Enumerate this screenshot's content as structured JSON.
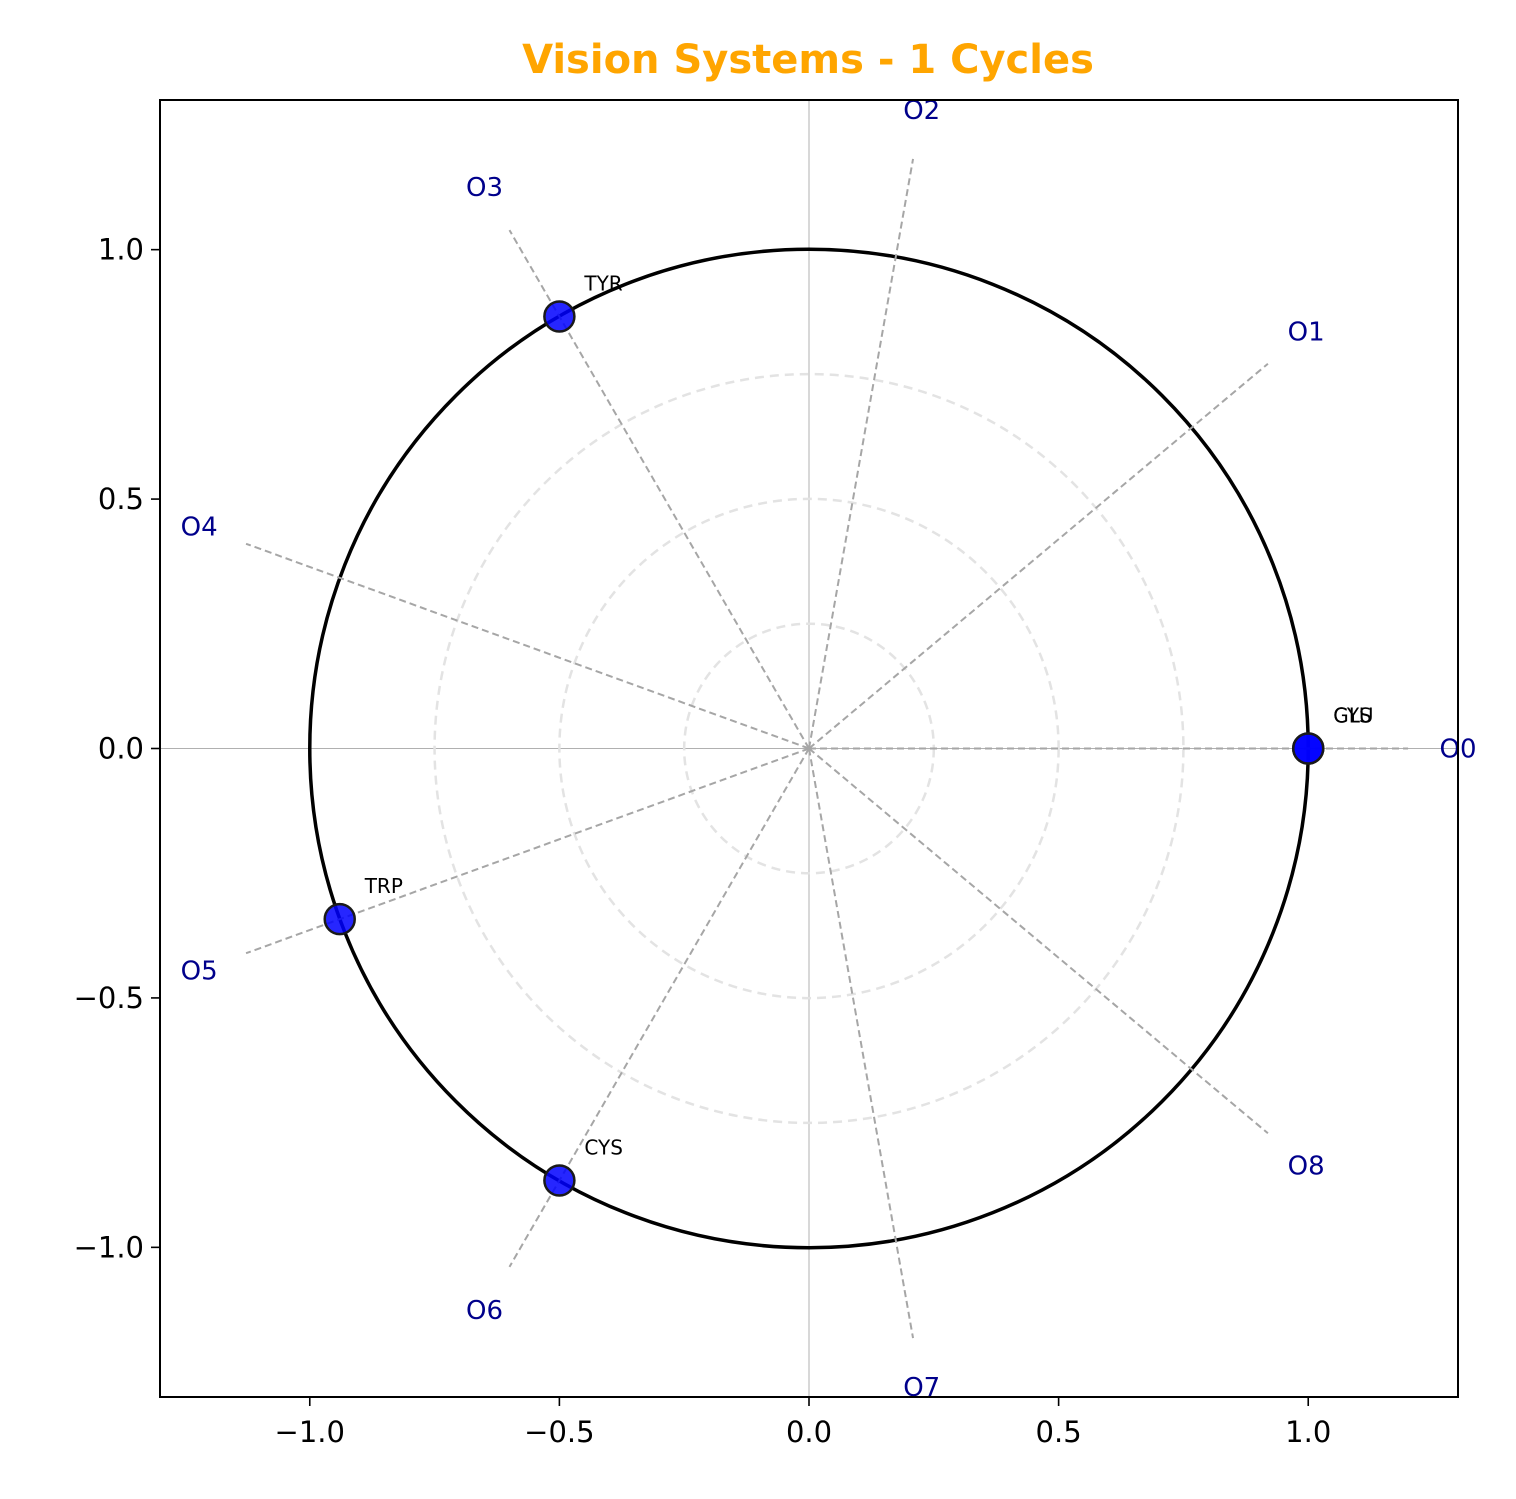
{
  "chart_data": {
    "type": "scatter",
    "title": "Vision Systems - 1 Cycles",
    "title_color": "#FFA500",
    "xlim": [
      -1.3,
      1.3
    ],
    "ylim": [
      -1.3,
      1.3
    ],
    "xticks": [
      -1.0,
      -0.5,
      0.0,
      0.5,
      1.0
    ],
    "yticks": [
      -1.0,
      -0.5,
      0.0,
      0.5,
      1.0
    ],
    "xtick_labels": [
      "−1.0",
      "−0.5",
      "0.0",
      "0.5",
      "1.0"
    ],
    "ytick_labels": [
      "−1.0",
      "−0.5",
      "0.0",
      "0.5",
      "1.0"
    ],
    "unit_circle_radius": 1.0,
    "inner_circle_radii": [
      0.25,
      0.5,
      0.75
    ],
    "spokes": [
      {
        "label": "O0",
        "angle_deg": 0,
        "length": 1.2
      },
      {
        "label": "O1",
        "angle_deg": 40,
        "length": 1.2
      },
      {
        "label": "O2",
        "angle_deg": 80,
        "length": 1.2
      },
      {
        "label": "O3",
        "angle_deg": 120,
        "length": 1.2
      },
      {
        "label": "O4",
        "angle_deg": 160,
        "length": 1.2
      },
      {
        "label": "O5",
        "angle_deg": 200,
        "length": 1.2
      },
      {
        "label": "O6",
        "angle_deg": 240,
        "length": 1.2
      },
      {
        "label": "O7",
        "angle_deg": 280,
        "length": 1.2
      },
      {
        "label": "O8",
        "angle_deg": 320,
        "length": 1.2
      }
    ],
    "spoke_label_color": "#00008B",
    "points": [
      {
        "label": "GLU",
        "x": 1.0,
        "y": 0.0
      },
      {
        "label": "CYS",
        "x": 1.0,
        "y": 0.0
      },
      {
        "label": "TYR",
        "x": -0.5,
        "y": 0.866
      },
      {
        "label": "TRP",
        "x": -0.94,
        "y": -0.342
      },
      {
        "label": "CYS",
        "x": -0.5,
        "y": -0.866
      }
    ],
    "point_color": "#0000FF",
    "grid": false
  }
}
